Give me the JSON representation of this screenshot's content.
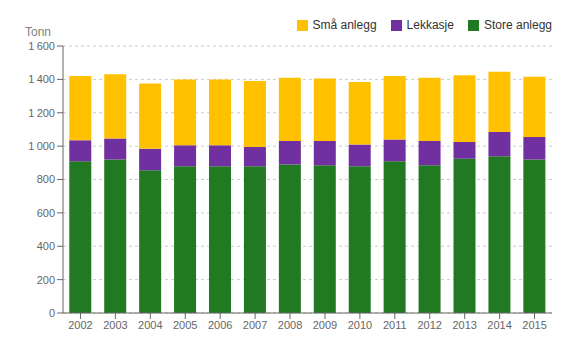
{
  "chart_data": {
    "type": "bar",
    "stacked": true,
    "categories": [
      "2002",
      "2003",
      "2004",
      "2005",
      "2006",
      "2007",
      "2008",
      "2009",
      "2010",
      "2011",
      "2012",
      "2013",
      "2014",
      "2015"
    ],
    "series": [
      {
        "name": "Store anlegg",
        "color": "#217a21",
        "values": [
          910,
          920,
          855,
          880,
          880,
          880,
          890,
          885,
          880,
          910,
          885,
          925,
          940,
          920
        ]
      },
      {
        "name": "Lekkasje",
        "color": "#7030a0",
        "values": [
          125,
          125,
          130,
          125,
          125,
          115,
          140,
          145,
          130,
          130,
          145,
          100,
          145,
          135
        ]
      },
      {
        "name": "Små anlegg",
        "color": "#ffc000",
        "values": [
          385,
          385,
          390,
          395,
          395,
          395,
          380,
          375,
          375,
          380,
          380,
          400,
          360,
          360
        ]
      }
    ],
    "ylabel": "Tonn",
    "ylim": [
      0,
      1600
    ],
    "yticks": [
      0,
      200,
      400,
      600,
      800,
      {
        "value": 1000,
        "label": "1 000"
      },
      {
        "value": 1200,
        "label": "1 200"
      },
      {
        "value": 1400,
        "label": "1 400"
      },
      {
        "value": 1600,
        "label": "1 600"
      }
    ],
    "grid": true,
    "legend": "upper right"
  }
}
